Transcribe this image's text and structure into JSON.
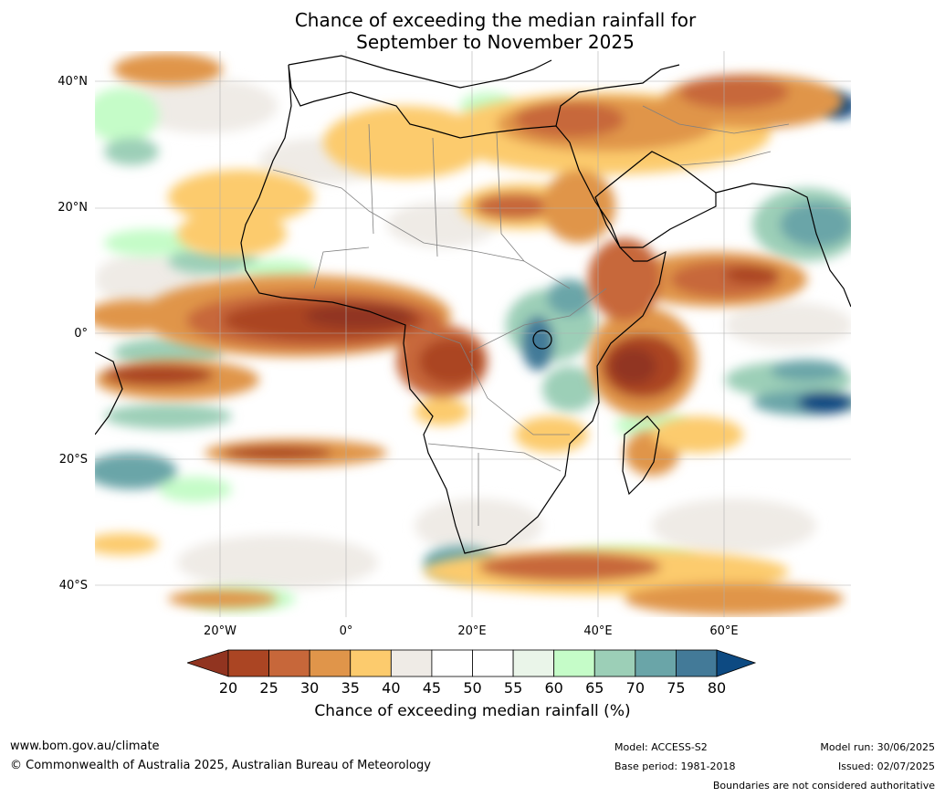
{
  "title": {
    "line1": "Chance of exceeding the median rainfall for",
    "line2": "September to November 2025"
  },
  "axes": {
    "lat_labels": [
      "40°N",
      "20°N",
      "0°",
      "20°S",
      "40°S"
    ],
    "lon_labels": [
      "20°W",
      "0°",
      "20°E",
      "40°E",
      "60°E"
    ]
  },
  "legend": {
    "ticks": [
      "20",
      "25",
      "30",
      "35",
      "40",
      "45",
      "50",
      "55",
      "60",
      "65",
      "70",
      "75",
      "80"
    ],
    "under_color": "#913420",
    "over_color": "#0d4a82",
    "colors": [
      "#ab4523",
      "#c7673a",
      "#e0954a",
      "#fccb6d",
      "#efebe6",
      "#ffffff",
      "#ffffff",
      "#eaf5e9",
      "#c5fcc8",
      "#9ccfb7",
      "#6aa5a8",
      "#437a98"
    ],
    "title": "Chance of exceeding median rainfall (%)"
  },
  "footer": {
    "website": "www.bom.gov.au/climate",
    "copyright": "© Commonwealth of Australia 2025, Australian Bureau of Meteorology",
    "model": "Model: ACCESS-S2",
    "base_period": "Base period: 1981-2018",
    "model_run": "Model run: 30/06/2025",
    "issued": "Issued: 02/07/2025",
    "disclaimer": "Boundaries are not considered authoritative"
  }
}
